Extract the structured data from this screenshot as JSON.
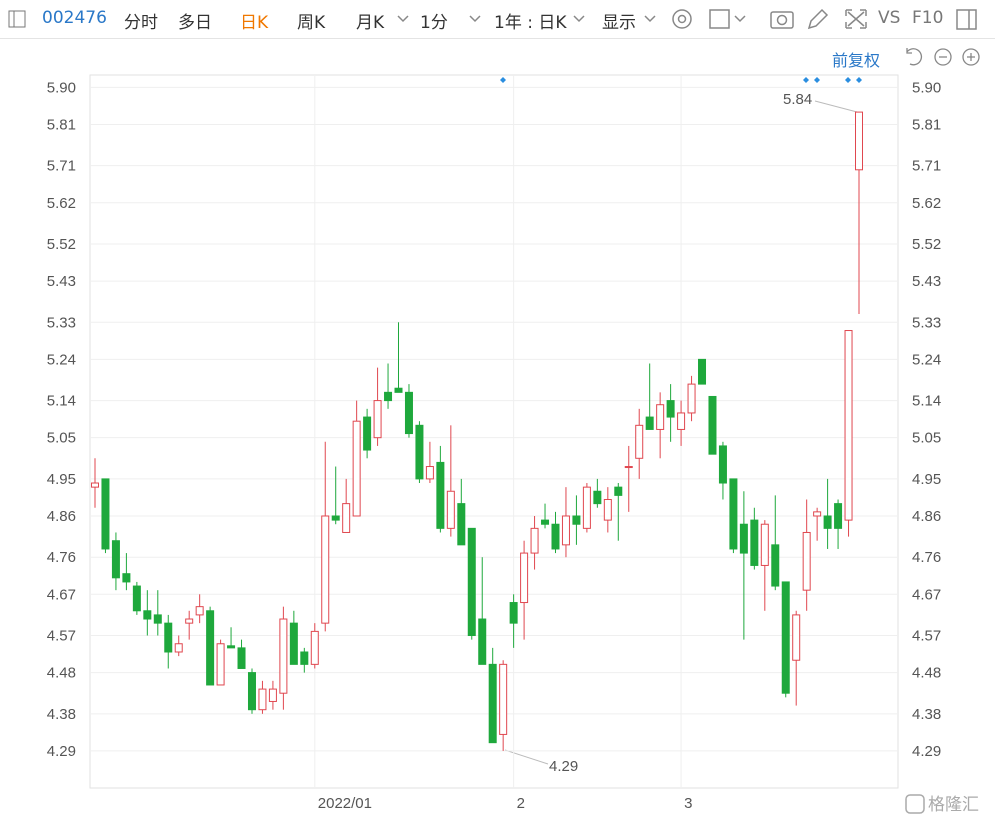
{
  "toolbar": {
    "code": "002476",
    "tabs": [
      "分时",
      "多日",
      "日K",
      "周K",
      "月K",
      "1分",
      "1年 : 日K",
      "显示"
    ],
    "vs": "VS",
    "f10": "F10",
    "adjust": "前复权"
  },
  "watermark": "格隆汇",
  "chart_data": {
    "type": "candlestick",
    "categories": [
      null,
      null,
      null,
      null,
      null,
      null,
      null,
      null,
      null,
      null,
      null,
      null,
      null,
      null,
      null,
      null,
      null,
      null,
      null,
      null,
      null,
      "2022/01",
      null,
      null,
      null,
      null,
      null,
      null,
      null,
      null,
      null,
      null,
      null,
      null,
      null,
      null,
      null,
      null,
      null,
      null,
      "2",
      null,
      null,
      null,
      null,
      null,
      null,
      null,
      null,
      null,
      null,
      null,
      null,
      null,
      null,
      null,
      "3",
      null,
      null,
      null,
      null,
      null,
      null,
      null,
      null,
      null,
      null,
      null,
      null,
      null,
      null,
      null,
      null,
      null
    ],
    "open": [
      4.93,
      4.95,
      4.8,
      4.72,
      4.69,
      4.63,
      4.62,
      4.6,
      4.53,
      4.6,
      4.62,
      4.63,
      4.45,
      4.545,
      4.54,
      4.48,
      4.39,
      4.41,
      4.43,
      4.6,
      4.53,
      4.5,
      4.6,
      4.86,
      4.82,
      4.86,
      5.1,
      5.05,
      5.16,
      5.17,
      5.16,
      5.08,
      4.95,
      4.99,
      4.83,
      4.89,
      4.83,
      4.61,
      4.5,
      4.33,
      4.65,
      4.65,
      4.77,
      4.85,
      4.84,
      4.79,
      4.86,
      4.83,
      4.92,
      4.85,
      4.93,
      4.98,
      5.0,
      5.1,
      5.07,
      5.14,
      5.07,
      5.11,
      5.24,
      5.15,
      5.03,
      4.95,
      4.84,
      4.85,
      4.74,
      4.79,
      4.7,
      4.51,
      4.68,
      4.86,
      4.86,
      4.89,
      4.85,
      5.7
    ],
    "high": [
      5.0,
      4.95,
      4.82,
      4.77,
      4.7,
      4.68,
      4.68,
      4.62,
      4.57,
      4.63,
      4.67,
      4.64,
      4.56,
      4.59,
      4.56,
      4.49,
      4.46,
      4.46,
      4.64,
      4.63,
      4.54,
      4.6,
      5.04,
      4.98,
      4.95,
      5.14,
      5.12,
      5.22,
      5.23,
      5.33,
      5.18,
      5.09,
      5.04,
      5.03,
      5.08,
      4.95,
      4.83,
      4.76,
      4.54,
      4.51,
      4.67,
      4.8,
      4.86,
      4.89,
      4.87,
      4.93,
      4.91,
      4.94,
      4.95,
      4.93,
      4.94,
      5.03,
      5.12,
      5.23,
      5.16,
      5.18,
      5.14,
      5.2,
      5.24,
      5.15,
      5.04,
      4.95,
      4.92,
      4.88,
      4.85,
      4.91,
      4.7,
      4.63,
      4.9,
      4.88,
      4.95,
      4.9,
      5.31,
      5.84
    ],
    "low": [
      4.88,
      4.77,
      4.68,
      4.68,
      4.62,
      4.57,
      4.57,
      4.49,
      4.52,
      4.56,
      4.6,
      4.45,
      4.45,
      4.54,
      4.49,
      4.38,
      4.38,
      4.39,
      4.39,
      4.5,
      4.48,
      4.49,
      4.58,
      4.84,
      4.82,
      4.86,
      5.0,
      5.03,
      5.12,
      5.16,
      5.05,
      4.94,
      4.94,
      4.82,
      4.81,
      4.79,
      4.56,
      4.5,
      4.31,
      4.29,
      4.54,
      4.56,
      4.73,
      4.83,
      4.77,
      4.76,
      4.79,
      4.82,
      4.88,
      4.82,
      4.8,
      4.87,
      4.95,
      5.07,
      5.0,
      5.04,
      5.03,
      5.09,
      5.18,
      5.01,
      4.9,
      4.77,
      4.56,
      4.73,
      4.63,
      4.68,
      4.42,
      4.4,
      4.63,
      4.8,
      4.78,
      4.78,
      4.81,
      5.35
    ],
    "close": [
      4.94,
      4.78,
      4.71,
      4.7,
      4.63,
      4.61,
      4.6,
      4.53,
      4.55,
      4.61,
      4.64,
      4.45,
      4.55,
      4.54,
      4.49,
      4.39,
      4.44,
      4.44,
      4.61,
      4.5,
      4.5,
      4.58,
      4.86,
      4.85,
      4.89,
      5.09,
      5.02,
      5.14,
      5.14,
      5.16,
      5.06,
      4.95,
      4.98,
      4.83,
      4.92,
      4.79,
      4.57,
      4.5,
      4.31,
      4.5,
      4.6,
      4.77,
      4.83,
      4.84,
      4.78,
      4.86,
      4.84,
      4.93,
      4.89,
      4.9,
      4.91,
      4.98,
      5.08,
      5.07,
      5.13,
      5.1,
      5.11,
      5.18,
      5.18,
      5.01,
      4.94,
      4.78,
      4.77,
      4.74,
      4.84,
      4.69,
      4.43,
      4.62,
      4.82,
      4.87,
      4.83,
      4.83,
      5.31,
      5.84
    ],
    "up_color": "#e0474f",
    "down_color": "#1ea83c",
    "annotations": [
      "5.84",
      "4.29"
    ],
    "ylim": [
      4.2,
      5.93
    ],
    "yticks": [
      {
        "value": 5.9,
        "label": "5.90"
      },
      5.81,
      5.71,
      5.62,
      5.52,
      5.43,
      5.33,
      5.24,
      5.14,
      5.05,
      4.95,
      4.86,
      4.76,
      4.67,
      4.57,
      4.48,
      4.38,
      4.29
    ],
    "grid": true
  }
}
